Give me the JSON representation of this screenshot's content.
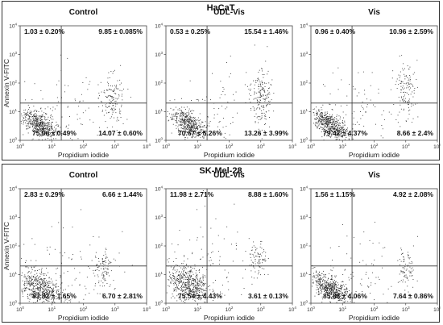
{
  "chart_data": [
    {
      "type": "scatter",
      "title": "HaCaT",
      "xlabel": "Propidium iodide",
      "ylabel": "Annexin V-FITC",
      "axis": {
        "scale": "log",
        "range": [
          1,
          10000
        ],
        "ticks": [
          {
            "base": "10",
            "exp": "0"
          },
          {
            "base": "10",
            "exp": "1"
          },
          {
            "base": "10",
            "exp": "2"
          },
          {
            "base": "10",
            "exp": "3"
          },
          {
            "base": "10",
            "exp": "4"
          }
        ],
        "gate_x": 20,
        "gate_y": 20
      },
      "panels": [
        {
          "name": "Control",
          "quadrants": {
            "upper_left": "1.03 ± 0.20%",
            "upper_right": "9.85 ± 0.085%",
            "lower_left": "75.06 ± 0.49%",
            "lower_right": "14.07 ± 0.60%"
          }
        },
        {
          "name": "UDL-Vis",
          "quadrants": {
            "upper_left": "0.53 ± 0.25%",
            "upper_right": "15.54 ± 1.46%",
            "lower_left": "70.67 ± 5.26%",
            "lower_right": "13.26 ± 3.99%"
          }
        },
        {
          "name": "Vis",
          "quadrants": {
            "upper_left": "0.96 ± 0.40%",
            "upper_right": "10.96 ± 2.59%",
            "lower_left": "79.42 ± 4.37%",
            "lower_right": "8.66 ± 2.4%"
          }
        }
      ]
    },
    {
      "type": "scatter",
      "title": "SK-Mel-28",
      "xlabel": "Propidium iodide",
      "ylabel": "Annexin V-FITC",
      "axis": {
        "scale": "log",
        "range": [
          1,
          10000
        ],
        "ticks": [
          {
            "base": "10",
            "exp": "0"
          },
          {
            "base": "10",
            "exp": "1"
          },
          {
            "base": "10",
            "exp": "2"
          },
          {
            "base": "10",
            "exp": "3"
          },
          {
            "base": "10",
            "exp": "4"
          }
        ],
        "gate_x": 20,
        "gate_y": 20
      },
      "panels": [
        {
          "name": "Control",
          "quadrants": {
            "upper_left": "2.83 ± 0.29%",
            "upper_right": "6.66 ± 1.44%",
            "lower_left": "83.82 ± 1.65%",
            "lower_right": "6.70 ± 2.81%"
          }
        },
        {
          "name": "UDL-Vis",
          "quadrants": {
            "upper_left": "11.98 ± 2.71%",
            "upper_right": "8.88 ± 1.60%",
            "lower_left": "75.54 ± 4.43%",
            "lower_right": "3.61 ± 0.13%"
          }
        },
        {
          "name": "Vis",
          "quadrants": {
            "upper_left": "1.56 ± 1.15%",
            "upper_right": "4.92 ± 2.08%",
            "lower_left": "85.88 ± 4.06%",
            "lower_right": "7.64 ± 0.86%"
          }
        }
      ]
    }
  ]
}
